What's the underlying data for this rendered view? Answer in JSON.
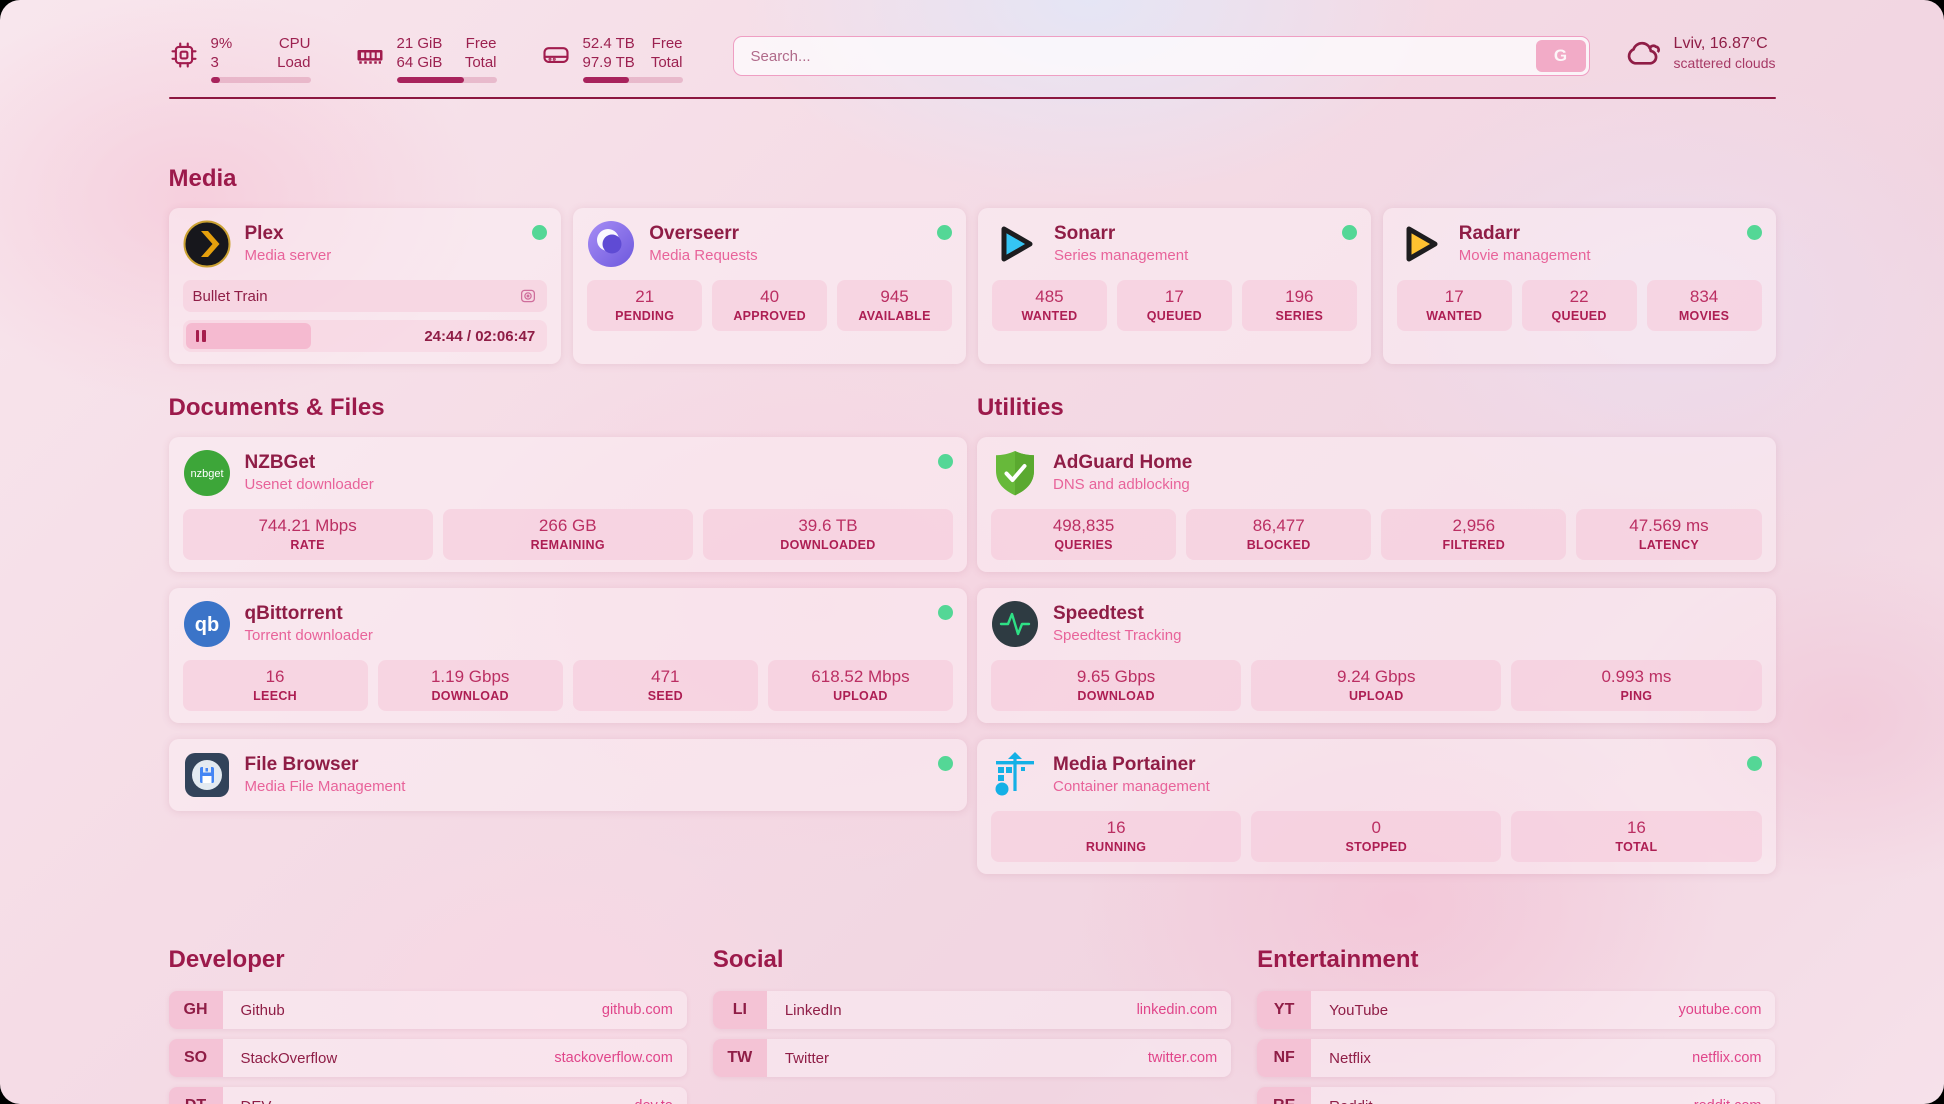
{
  "theme": {
    "accent": "#a11c4e",
    "heading_color": "#9c1a4b",
    "subtitle_pink": "#e8639a",
    "link_pink": "#e0458a",
    "status_online_green": "#54d796",
    "search_button_bg": "#f2abc7",
    "progress_fill": "#a8235c"
  },
  "topbar": {
    "resources": [
      {
        "icon": "cpu-icon",
        "value_top": "9%",
        "value_bottom": "3",
        "label_top": "CPU",
        "label_bottom": "Load",
        "progress_pct": 9
      },
      {
        "icon": "ram-icon",
        "value_top": "21 GiB",
        "value_bottom": "64 GiB",
        "label_top": "Free",
        "label_bottom": "Total",
        "progress_pct": 67
      },
      {
        "icon": "disk-icon",
        "value_top": "52.4 TB",
        "value_bottom": "97.9 TB",
        "label_top": "Free",
        "label_bottom": "Total",
        "progress_pct": 46
      }
    ],
    "search": {
      "placeholder": "Search...",
      "button_label": "G"
    },
    "weather": {
      "location_temp": "Lviv, 16.87°C",
      "condition": "scattered clouds"
    }
  },
  "media": {
    "title": "Media",
    "plex": {
      "name": "Plex",
      "desc": "Media server",
      "now_playing": "Bullet Train",
      "time": "24:44 / 02:06:47"
    },
    "overseerr": {
      "name": "Overseerr",
      "desc": "Media Requests",
      "stats": [
        {
          "value": "21",
          "label": "PENDING"
        },
        {
          "value": "40",
          "label": "APPROVED"
        },
        {
          "value": "945",
          "label": "AVAILABLE"
        }
      ]
    },
    "sonarr": {
      "name": "Sonarr",
      "desc": "Series management",
      "stats": [
        {
          "value": "485",
          "label": "WANTED"
        },
        {
          "value": "17",
          "label": "QUEUED"
        },
        {
          "value": "196",
          "label": "SERIES"
        }
      ]
    },
    "radarr": {
      "name": "Radarr",
      "desc": "Movie management",
      "stats": [
        {
          "value": "17",
          "label": "WANTED"
        },
        {
          "value": "22",
          "label": "QUEUED"
        },
        {
          "value": "834",
          "label": "MOVIES"
        }
      ]
    }
  },
  "documents": {
    "title": "Documents & Files",
    "nzbget": {
      "name": "NZBGet",
      "desc": "Usenet downloader",
      "stats": [
        {
          "value": "744.21 Mbps",
          "label": "RATE"
        },
        {
          "value": "266 GB",
          "label": "REMAINING"
        },
        {
          "value": "39.6 TB",
          "label": "DOWNLOADED"
        }
      ]
    },
    "qbittorrent": {
      "name": "qBittorrent",
      "desc": "Torrent downloader",
      "stats": [
        {
          "value": "16",
          "label": "LEECH"
        },
        {
          "value": "1.19 Gbps",
          "label": "DOWNLOAD"
        },
        {
          "value": "471",
          "label": "SEED"
        },
        {
          "value": "618.52 Mbps",
          "label": "UPLOAD"
        }
      ]
    },
    "filebrowser": {
      "name": "File Browser",
      "desc": "Media File Management"
    }
  },
  "utilities": {
    "title": "Utilities",
    "adguard": {
      "name": "AdGuard Home",
      "desc": "DNS and adblocking",
      "stats": [
        {
          "value": "498,835",
          "label": "QUERIES"
        },
        {
          "value": "86,477",
          "label": "BLOCKED"
        },
        {
          "value": "2,956",
          "label": "FILTERED"
        },
        {
          "value": "47.569 ms",
          "label": "LATENCY"
        }
      ]
    },
    "speedtest": {
      "name": "Speedtest",
      "desc": "Speedtest Tracking",
      "stats": [
        {
          "value": "9.65 Gbps",
          "label": "DOWNLOAD"
        },
        {
          "value": "9.24 Gbps",
          "label": "UPLOAD"
        },
        {
          "value": "0.993 ms",
          "label": "PING"
        }
      ]
    },
    "portainer": {
      "name": "Media Portainer",
      "desc": "Container management",
      "stats": [
        {
          "value": "16",
          "label": "RUNNING"
        },
        {
          "value": "0",
          "label": "STOPPED"
        },
        {
          "value": "16",
          "label": "TOTAL"
        }
      ]
    }
  },
  "bookmarks": {
    "developer": {
      "title": "Developer",
      "links": [
        {
          "abbr": "GH",
          "name": "Github",
          "url": "github.com"
        },
        {
          "abbr": "SO",
          "name": "StackOverflow",
          "url": "stackoverflow.com"
        },
        {
          "abbr": "DT",
          "name": "DEV",
          "url": "dev.to"
        }
      ]
    },
    "social": {
      "title": "Social",
      "links": [
        {
          "abbr": "LI",
          "name": "LinkedIn",
          "url": "linkedin.com"
        },
        {
          "abbr": "TW",
          "name": "Twitter",
          "url": "twitter.com"
        }
      ]
    },
    "entertainment": {
      "title": "Entertainment",
      "links": [
        {
          "abbr": "YT",
          "name": "YouTube",
          "url": "youtube.com"
        },
        {
          "abbr": "NF",
          "name": "Netflix",
          "url": "netflix.com"
        },
        {
          "abbr": "RE",
          "name": "Reddit",
          "url": "reddit.com"
        }
      ]
    }
  }
}
